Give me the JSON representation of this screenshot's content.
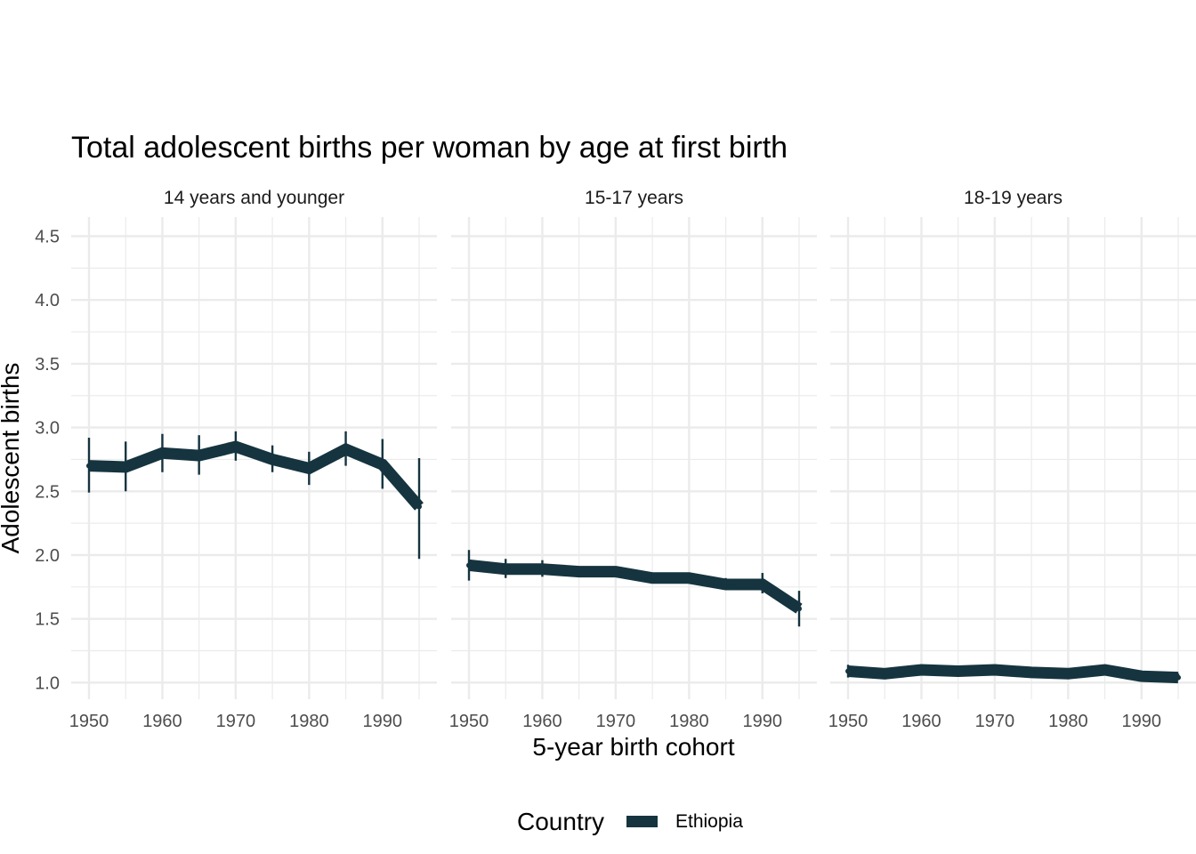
{
  "chart_data": {
    "type": "line",
    "title": "Total adolescent births per woman by age at first birth",
    "xlabel": "5-year birth cohort",
    "ylabel": "Adolescent births",
    "xlim": [
      1950,
      1995
    ],
    "ylim": [
      0.87,
      4.65
    ],
    "x_ticks": [
      1950,
      1960,
      1970,
      1980,
      1990
    ],
    "y_ticks": [
      1.0,
      1.5,
      2.0,
      2.5,
      3.0,
      3.5,
      4.0,
      4.5
    ],
    "y_tick_labels": [
      "1.0",
      "1.5",
      "2.0",
      "2.5",
      "3.0",
      "3.5",
      "4.0",
      "4.5"
    ],
    "x": [
      1950,
      1955,
      1960,
      1965,
      1970,
      1975,
      1980,
      1985,
      1990,
      1995
    ],
    "legend": {
      "title": "Country",
      "position": "bottom",
      "entries": [
        "Ethiopia"
      ]
    },
    "series_color": "#15343f",
    "panels": [
      {
        "label": "14 years and younger",
        "series": [
          {
            "name": "Ethiopia",
            "values": [
              2.7,
              2.69,
              2.8,
              2.78,
              2.85,
              2.75,
              2.68,
              2.83,
              2.71,
              2.38
            ],
            "lower": [
              2.49,
              2.5,
              2.65,
              2.63,
              2.74,
              2.65,
              2.55,
              2.7,
              2.52,
              1.97
            ],
            "upper": [
              2.92,
              2.89,
              2.95,
              2.94,
              2.97,
              2.86,
              2.81,
              2.97,
              2.91,
              2.76
            ]
          }
        ]
      },
      {
        "label": "15-17 years",
        "series": [
          {
            "name": "Ethiopia",
            "values": [
              1.92,
              1.89,
              1.89,
              1.87,
              1.87,
              1.82,
              1.82,
              1.77,
              1.77,
              1.58
            ],
            "lower": [
              1.8,
              1.82,
              1.83,
              1.83,
              1.84,
              1.79,
              1.79,
              1.73,
              1.7,
              1.44
            ],
            "upper": [
              2.04,
              1.97,
              1.96,
              1.91,
              1.9,
              1.86,
              1.86,
              1.82,
              1.86,
              1.72
            ]
          }
        ]
      },
      {
        "label": "18-19 years",
        "series": [
          {
            "name": "Ethiopia",
            "values": [
              1.09,
              1.07,
              1.1,
              1.09,
              1.1,
              1.08,
              1.07,
              1.1,
              1.05,
              1.04
            ],
            "lower": [
              1.04,
              1.05,
              1.09,
              1.08,
              1.08,
              1.07,
              1.06,
              1.09,
              1.03,
              1.02
            ],
            "upper": [
              1.14,
              1.09,
              1.11,
              1.11,
              1.11,
              1.1,
              1.09,
              1.11,
              1.07,
              1.07
            ]
          }
        ]
      }
    ]
  }
}
